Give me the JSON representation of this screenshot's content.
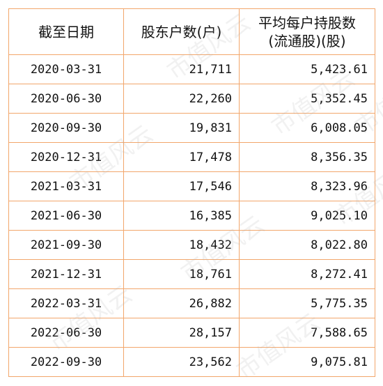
{
  "table": {
    "header": [
      "截至日期",
      "股东户数(户)",
      [
        "平均每户持股数",
        "(流通股)(股)"
      ]
    ],
    "rows": [
      [
        "2020-03-31",
        "21,711",
        "5,423.61"
      ],
      [
        "2020-06-30",
        "22,260",
        "5,352.45"
      ],
      [
        "2020-09-30",
        "19,831",
        "6,008.05"
      ],
      [
        "2020-12-31",
        "17,478",
        "8,356.35"
      ],
      [
        "2021-03-31",
        "17,546",
        "8,323.96"
      ],
      [
        "2021-06-30",
        "16,385",
        "9,025.10"
      ],
      [
        "2021-09-30",
        "18,432",
        "8,022.80"
      ],
      [
        "2021-12-31",
        "18,761",
        "8,272.41"
      ],
      [
        "2022-03-31",
        "26,882",
        "5,775.35"
      ],
      [
        "2022-06-30",
        "28,157",
        "7,588.65"
      ],
      [
        "2022-09-30",
        "23,562",
        "9,075.81"
      ]
    ]
  },
  "watermark": "市值风云"
}
